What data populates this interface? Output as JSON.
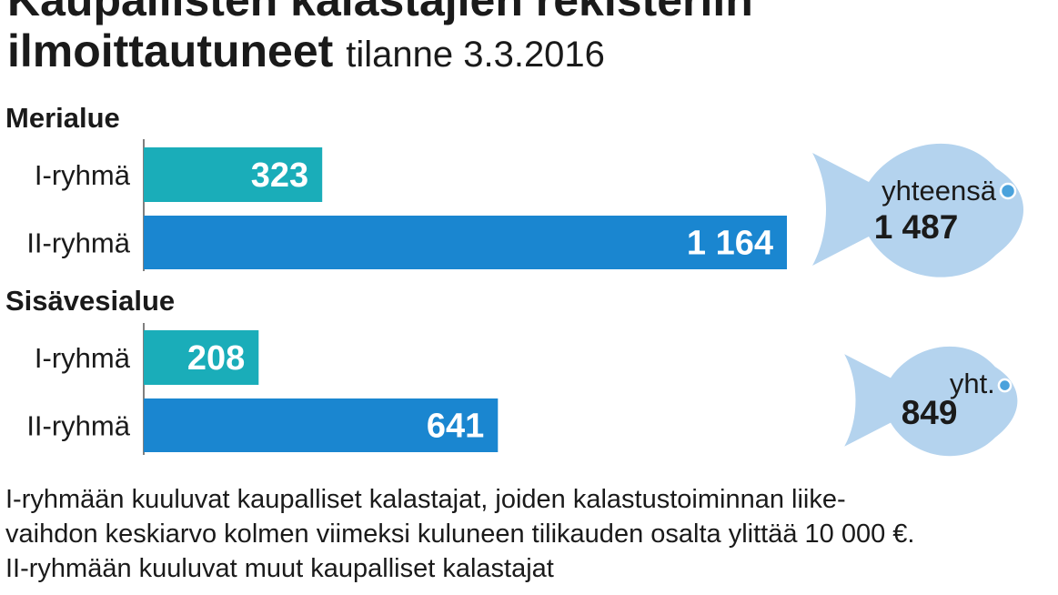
{
  "title": {
    "line1": "Kaupallisten kalastajien rekisteriin",
    "line2": "ilmoittautuneet",
    "subtitle": "tilanne 3.3.2016"
  },
  "colors": {
    "group1": "#1aadb9",
    "group2": "#1a86d0",
    "fish": "#b4d3ee",
    "fish_eye": "#4aa2dc",
    "bar_text": "#ffffff"
  },
  "chart_data": {
    "type": "bar",
    "orientation": "horizontal",
    "sections": [
      {
        "name": "Merialue",
        "categories": [
          "I-ryhmä",
          "II-ryhmä"
        ],
        "values": [
          323,
          1164
        ],
        "value_labels": [
          "323",
          "1 164"
        ],
        "total_label": "yhteensä",
        "total_value": "1 487"
      },
      {
        "name": "Sisävesialue",
        "categories": [
          "I-ryhmä",
          "II-ryhmä"
        ],
        "values": [
          208,
          641
        ],
        "value_labels": [
          "208",
          "641"
        ],
        "total_label": "yht.",
        "total_value": "849"
      }
    ]
  },
  "notes": [
    "I-ryhmään kuuluvat kaupalliset kalastajat, joiden kalastustoiminnan liike-",
    "vaihdon keskiarvo kolmen viimeksi kuluneen tilikauden osalta ylittää 10 000 €.",
    "II-ryhmään kuuluvat muut kaupalliset kalastajat"
  ]
}
